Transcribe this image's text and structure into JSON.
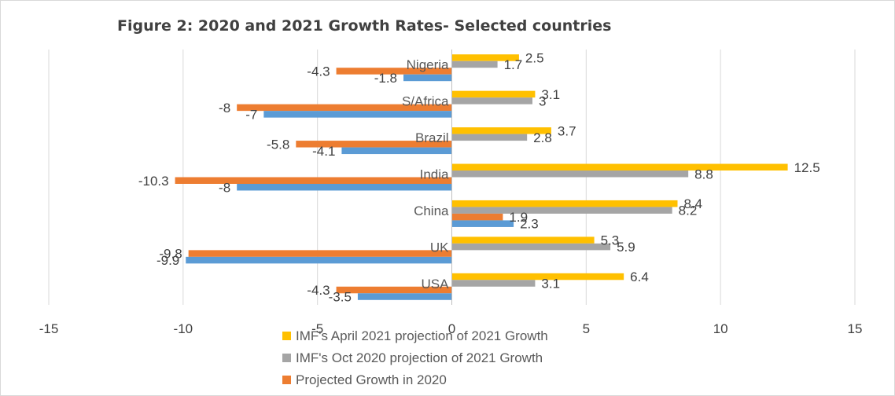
{
  "chart_data": {
    "type": "bar",
    "orientation": "horizontal",
    "title": "Figure 2: 2020 and 2021 Growth Rates- Selected countries",
    "xlabel": "",
    "ylabel": "",
    "xlim": [
      -15,
      15
    ],
    "xticks": [
      -15,
      -10,
      -5,
      0,
      5,
      10,
      15
    ],
    "grid": true,
    "legend_position": "bottom",
    "categories": [
      "Nigeria",
      "S/Africa",
      "Brazil",
      "India",
      "China",
      "UK",
      "USA"
    ],
    "series": [
      {
        "name": "IMF's April 2021 projection of 2021 Growth",
        "color": "#ffc000",
        "values": [
          2.5,
          3.1,
          3.7,
          12.5,
          8.4,
          5.3,
          6.4
        ]
      },
      {
        "name": "IMF's Oct 2020 projection of 2021 Growth",
        "color": "#a5a5a5",
        "values": [
          1.7,
          3,
          2.8,
          8.8,
          8.2,
          5.9,
          3.1
        ]
      },
      {
        "name": "Projected Growth in 2020",
        "color": "#ed7d31",
        "values": [
          -4.3,
          -8,
          -5.8,
          -10.3,
          1.9,
          -9.8,
          -4.3
        ]
      },
      {
        "name": "",
        "color": "#5b9bd5",
        "values": [
          -1.8,
          -7,
          -4.1,
          -8,
          2.3,
          -9.9,
          -3.5
        ]
      }
    ]
  }
}
